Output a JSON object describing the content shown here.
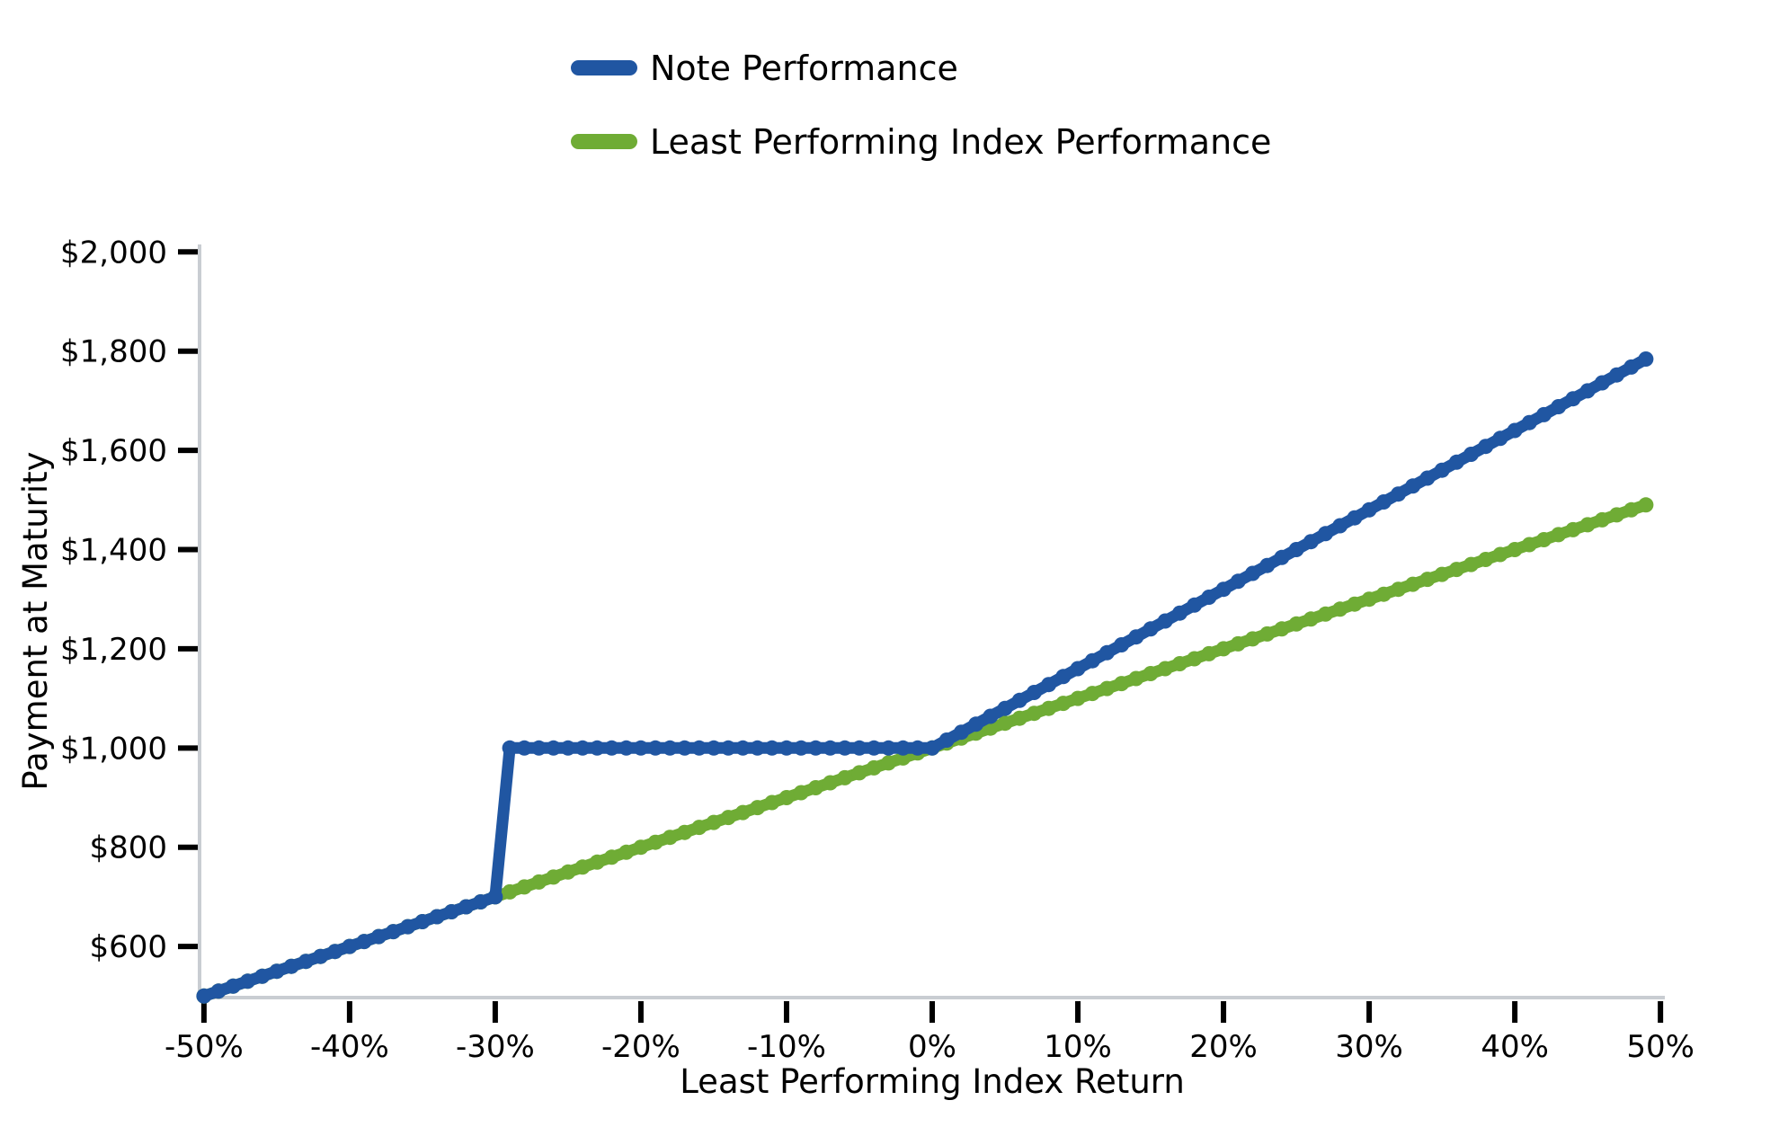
{
  "chart_data": {
    "type": "line",
    "title": "",
    "xlabel": "Least Performing Index Return",
    "ylabel": "Payment at Maturity",
    "grid": false,
    "legend_position": "top-center, vertical stack, no border",
    "marker": "circle",
    "xlim": [
      -50.3,
      50.3
    ],
    "ylim": [
      497,
      2015
    ],
    "spine_color": "#C9CDD2",
    "tick_color": "#000000",
    "x_ticks": {
      "values": [
        -50,
        -40,
        -30,
        -20,
        -10,
        0,
        10,
        20,
        30,
        40,
        50
      ],
      "labels": [
        "-50%",
        "-40%",
        "-30%",
        "-20%",
        "-10%",
        "0%",
        "10%",
        "20%",
        "30%",
        "40%",
        "50%"
      ]
    },
    "y_ticks": {
      "values": [
        600,
        800,
        1000,
        1200,
        1400,
        1600,
        1800,
        2000
      ],
      "labels": [
        "$600",
        "$800",
        "$1,000",
        "$1,200",
        "$1,400",
        "$1,600",
        "$1,800",
        "$2,000"
      ]
    },
    "x": [
      -50,
      -49,
      -48,
      -47,
      -46,
      -45,
      -44,
      -43,
      -42,
      -41,
      -40,
      -39,
      -38,
      -37,
      -36,
      -35,
      -34,
      -33,
      -32,
      -31,
      -30,
      -29,
      -28,
      -27,
      -26,
      -25,
      -24,
      -23,
      -22,
      -21,
      -20,
      -19,
      -18,
      -17,
      -16,
      -15,
      -14,
      -13,
      -12,
      -11,
      -10,
      -9,
      -8,
      -7,
      -6,
      -5,
      -4,
      -3,
      -2,
      -1,
      0,
      1,
      2,
      3,
      4,
      5,
      6,
      7,
      8,
      9,
      10,
      11,
      12,
      13,
      14,
      15,
      16,
      17,
      18,
      19,
      20,
      21,
      22,
      23,
      24,
      25,
      26,
      27,
      28,
      29,
      30,
      31,
      32,
      33,
      34,
      35,
      36,
      37,
      38,
      39,
      40,
      41,
      42,
      43,
      44,
      45,
      46,
      47,
      48,
      49
    ],
    "series": [
      {
        "name": "Note Performance",
        "color": "#2056A2",
        "values": [
          500,
          510,
          520,
          530,
          540,
          550,
          560,
          570,
          580,
          590,
          600,
          610,
          620,
          630,
          640,
          650,
          660,
          670,
          680,
          690,
          700,
          1000,
          1000,
          1000,
          1000,
          1000,
          1000,
          1000,
          1000,
          1000,
          1000,
          1000,
          1000,
          1000,
          1000,
          1000,
          1000,
          1000,
          1000,
          1000,
          1000,
          1000,
          1000,
          1000,
          1000,
          1000,
          1000,
          1000,
          1000,
          1000,
          1000,
          1016,
          1032,
          1048,
          1064,
          1080,
          1096,
          1112,
          1128,
          1144,
          1160,
          1176,
          1192,
          1208,
          1224,
          1240,
          1256,
          1272,
          1288,
          1304,
          1320,
          1336,
          1352,
          1368,
          1384,
          1400,
          1416,
          1432,
          1448,
          1464,
          1480,
          1496,
          1512,
          1528,
          1544,
          1560,
          1576,
          1592,
          1608,
          1624,
          1640,
          1656,
          1672,
          1688,
          1704,
          1720,
          1736,
          1752,
          1768,
          1784
        ]
      },
      {
        "name": "Least Performing Index Performance",
        "color": "#6FAC35",
        "values": [
          500,
          510,
          520,
          530,
          540,
          550,
          560,
          570,
          580,
          590,
          600,
          610,
          620,
          630,
          640,
          650,
          660,
          670,
          680,
          690,
          700,
          710,
          720,
          730,
          740,
          750,
          760,
          770,
          780,
          790,
          800,
          810,
          820,
          830,
          840,
          850,
          860,
          870,
          880,
          890,
          900,
          910,
          920,
          930,
          940,
          950,
          960,
          970,
          980,
          990,
          1000,
          1010,
          1020,
          1030,
          1040,
          1050,
          1060,
          1070,
          1080,
          1090,
          1100,
          1110,
          1120,
          1130,
          1140,
          1150,
          1160,
          1170,
          1180,
          1190,
          1200,
          1210,
          1220,
          1230,
          1240,
          1250,
          1260,
          1270,
          1280,
          1290,
          1300,
          1310,
          1320,
          1330,
          1340,
          1350,
          1360,
          1370,
          1380,
          1390,
          1400,
          1410,
          1420,
          1430,
          1440,
          1450,
          1460,
          1470,
          1480,
          1490
        ]
      }
    ],
    "key_points": {
      "buffer_threshold_pct": -30,
      "payment_at_buffer_low_side": 700,
      "flat_payment": 1000,
      "upside_participation": 1.6,
      "note_at_plus_49pct": 1784,
      "index_at_plus_49pct": 1490
    }
  }
}
